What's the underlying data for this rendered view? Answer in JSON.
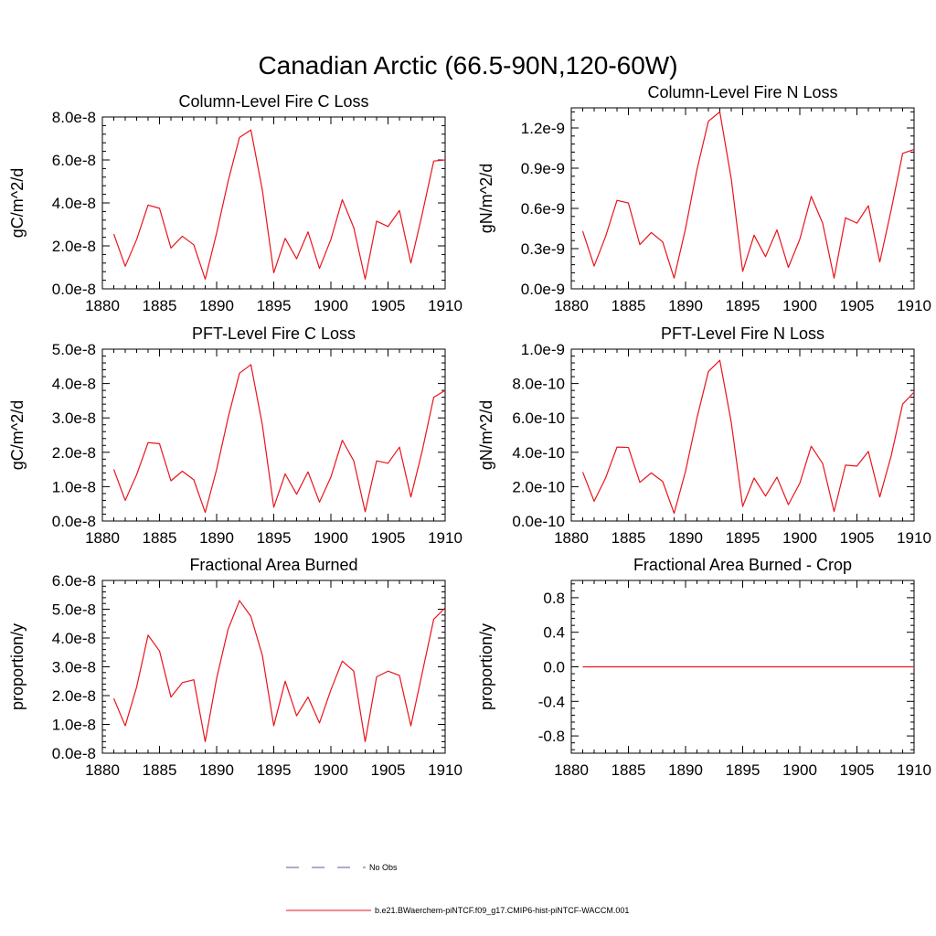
{
  "figure": {
    "title": "Canadian Arctic (66.5-90N,120-60W)",
    "line_color": "#e8141c",
    "obs_color": "#5a5aa0"
  },
  "legend": {
    "placement": "bottom-center",
    "entries": [
      {
        "label": "No Obs",
        "style": "dashed",
        "color": "#5a5aa0"
      },
      {
        "label": "b.e21.BWaerchem-piNTCF.f09_g17.CMIP6-hist-piNTCF-WACCM.001",
        "style": "solid",
        "color": "#e8141c"
      }
    ]
  },
  "chart_data": [
    {
      "type": "line",
      "title": "Column-Level Fire C Loss",
      "xlabel": "",
      "ylabel": "gC/m^2/d",
      "xlim": [
        1880,
        1910
      ],
      "ylim": [
        0,
        8e-08
      ],
      "xticks": [
        1880,
        1885,
        1890,
        1895,
        1900,
        1905,
        1910
      ],
      "xtick_labels": [
        "1880",
        "1885",
        "1890",
        "1895",
        "1900",
        "1905",
        "1910"
      ],
      "yticks": [
        0,
        2e-08,
        4e-08,
        6e-08,
        8e-08
      ],
      "ytick_labels": [
        "0.0e-8",
        "2.0e-8",
        "4.0e-8",
        "6.0e-8",
        "8.0e-8"
      ],
      "x": [
        1881,
        1882,
        1883,
        1884,
        1885,
        1886,
        1887,
        1888,
        1889,
        1890,
        1891,
        1892,
        1893,
        1894,
        1895,
        1896,
        1897,
        1898,
        1899,
        1900,
        1901,
        1902,
        1903,
        1904,
        1905,
        1906,
        1907,
        1908,
        1909,
        1910
      ],
      "values": [
        2.55e-08,
        1.05e-08,
        2.3e-08,
        3.9e-08,
        3.75e-08,
        1.9e-08,
        2.45e-08,
        2.05e-08,
        4.5e-09,
        2.6e-08,
        5e-08,
        7.05e-08,
        7.4e-08,
        4.6e-08,
        7.5e-09,
        2.35e-08,
        1.4e-08,
        2.65e-08,
        9.5e-09,
        2.3e-08,
        4.15e-08,
        2.85e-08,
        4.5e-09,
        3.15e-08,
        2.9e-08,
        3.65e-08,
        1.2e-08,
        3.5e-08,
        5.95e-08,
        6e-08
      ]
    },
    {
      "type": "line",
      "title": "Column-Level Fire N Loss",
      "xlabel": "",
      "ylabel": "gN/m^2/d",
      "xlim": [
        1880,
        1910
      ],
      "ylim": [
        0,
        1.35e-09
      ],
      "xticks": [
        1880,
        1885,
        1890,
        1895,
        1900,
        1905,
        1910
      ],
      "xtick_labels": [
        "1880",
        "1885",
        "1890",
        "1895",
        "1900",
        "1905",
        "1910"
      ],
      "yticks": [
        0,
        3e-10,
        6e-10,
        9e-10,
        1.2e-09
      ],
      "ytick_labels": [
        "0.0e-9",
        "0.3e-9",
        "0.6e-9",
        "0.9e-9",
        "1.2e-9"
      ],
      "x": [
        1881,
        1882,
        1883,
        1884,
        1885,
        1886,
        1887,
        1888,
        1889,
        1890,
        1891,
        1892,
        1893,
        1894,
        1895,
        1896,
        1897,
        1898,
        1899,
        1900,
        1901,
        1902,
        1903,
        1904,
        1905,
        1906,
        1907,
        1908,
        1909,
        1910
      ],
      "values": [
        4.3e-10,
        1.7e-10,
        3.9e-10,
        6.6e-10,
        6.4e-10,
        3.3e-10,
        4.2e-10,
        3.5e-10,
        8e-11,
        4.5e-10,
        8.9e-10,
        1.25e-09,
        1.32e-09,
        8.2e-10,
        1.3e-10,
        4e-10,
        2.4e-10,
        4.4e-10,
        1.6e-10,
        3.7e-10,
        6.9e-10,
        4.9e-10,
        8e-11,
        5.3e-10,
        4.9e-10,
        6.2e-10,
        2e-10,
        5.9e-10,
        1.01e-09,
        1.04e-09
      ]
    },
    {
      "type": "line",
      "title": "PFT-Level Fire C Loss",
      "xlabel": "",
      "ylabel": "gC/m^2/d",
      "xlim": [
        1880,
        1910
      ],
      "ylim": [
        0,
        5e-08
      ],
      "xticks": [
        1880,
        1885,
        1890,
        1895,
        1900,
        1905,
        1910
      ],
      "xtick_labels": [
        "1880",
        "1885",
        "1890",
        "1895",
        "1900",
        "1905",
        "1910"
      ],
      "yticks": [
        0,
        1e-08,
        2e-08,
        3e-08,
        4e-08,
        5e-08
      ],
      "ytick_labels": [
        "0.0e-8",
        "1.0e-8",
        "2.0e-8",
        "3.0e-8",
        "4.0e-8",
        "5.0e-8"
      ],
      "x": [
        1881,
        1882,
        1883,
        1884,
        1885,
        1886,
        1887,
        1888,
        1889,
        1890,
        1891,
        1892,
        1893,
        1894,
        1895,
        1896,
        1897,
        1898,
        1899,
        1900,
        1901,
        1902,
        1903,
        1904,
        1905,
        1906,
        1907,
        1908,
        1909,
        1910
      ],
      "values": [
        1.5e-08,
        6e-09,
        1.35e-08,
        2.28e-08,
        2.25e-08,
        1.17e-08,
        1.45e-08,
        1.2e-08,
        2.5e-09,
        1.5e-08,
        3e-08,
        4.3e-08,
        4.55e-08,
        2.8e-08,
        4e-09,
        1.37e-08,
        7.8e-09,
        1.43e-08,
        5.5e-09,
        1.28e-08,
        2.35e-08,
        1.75e-08,
        2.7e-09,
        1.75e-08,
        1.68e-08,
        2.15e-08,
        7e-09,
        2.05e-08,
        3.6e-08,
        3.8e-08
      ]
    },
    {
      "type": "line",
      "title": "PFT-Level Fire N Loss",
      "xlabel": "",
      "ylabel": "gN/m^2/d",
      "xlim": [
        1880,
        1910
      ],
      "ylim": [
        0,
        1e-09
      ],
      "xticks": [
        1880,
        1885,
        1890,
        1895,
        1900,
        1905,
        1910
      ],
      "xtick_labels": [
        "1880",
        "1885",
        "1890",
        "1895",
        "1900",
        "1905",
        "1910"
      ],
      "yticks": [
        0,
        2e-10,
        4e-10,
        6e-10,
        8e-10,
        1e-09
      ],
      "ytick_labels": [
        "0.0e-10",
        "2.0e-10",
        "4.0e-10",
        "6.0e-10",
        "8.0e-10",
        "1.0e-9"
      ],
      "x": [
        1881,
        1882,
        1883,
        1884,
        1885,
        1886,
        1887,
        1888,
        1889,
        1890,
        1891,
        1892,
        1893,
        1894,
        1895,
        1896,
        1897,
        1898,
        1899,
        1900,
        1901,
        1902,
        1903,
        1904,
        1905,
        1906,
        1907,
        1908,
        1909,
        1910
      ],
      "values": [
        2.85e-10,
        1.15e-10,
        2.5e-10,
        4.3e-10,
        4.28e-10,
        2.25e-10,
        2.8e-10,
        2.3e-10,
        4.5e-11,
        2.9e-10,
        6e-10,
        8.7e-10,
        9.35e-10,
        5.75e-10,
        8.5e-11,
        2.5e-10,
        1.45e-10,
        2.55e-10,
        9.5e-11,
        2.2e-10,
        4.35e-10,
        3.35e-10,
        5.5e-11,
        3.25e-10,
        3.2e-10,
        4.05e-10,
        1.4e-10,
        3.8e-10,
        6.8e-10,
        7.5e-10
      ]
    },
    {
      "type": "line",
      "title": "Fractional Area Burned",
      "xlabel": "",
      "ylabel": "proportion/y",
      "xlim": [
        1880,
        1910
      ],
      "ylim": [
        0,
        6e-08
      ],
      "xticks": [
        1880,
        1885,
        1890,
        1895,
        1900,
        1905,
        1910
      ],
      "xtick_labels": [
        "1880",
        "1885",
        "1890",
        "1895",
        "1900",
        "1905",
        "1910"
      ],
      "yticks": [
        0,
        1e-08,
        2e-08,
        3e-08,
        4e-08,
        5e-08,
        6e-08
      ],
      "ytick_labels": [
        "0.0e-8",
        "1.0e-8",
        "2.0e-8",
        "3.0e-8",
        "4.0e-8",
        "5.0e-8",
        "6.0e-8"
      ],
      "x": [
        1881,
        1882,
        1883,
        1884,
        1885,
        1886,
        1887,
        1888,
        1889,
        1890,
        1891,
        1892,
        1893,
        1894,
        1895,
        1896,
        1897,
        1898,
        1899,
        1900,
        1901,
        1902,
        1903,
        1904,
        1905,
        1906,
        1907,
        1908,
        1909,
        1910
      ],
      "values": [
        1.9e-08,
        9.5e-09,
        2.3e-08,
        4.1e-08,
        3.55e-08,
        1.95e-08,
        2.45e-08,
        2.55e-08,
        4e-09,
        2.6e-08,
        4.3e-08,
        5.3e-08,
        4.75e-08,
        3.4e-08,
        9.5e-09,
        2.5e-08,
        1.3e-08,
        1.95e-08,
        1.05e-08,
        2.2e-08,
        3.2e-08,
        2.85e-08,
        4e-09,
        2.65e-08,
        2.85e-08,
        2.7e-08,
        9.5e-09,
        2.8e-08,
        4.65e-08,
        5.05e-08
      ]
    },
    {
      "type": "line",
      "title": "Fractional Area Burned - Crop",
      "xlabel": "",
      "ylabel": "proportion/y",
      "xlim": [
        1880,
        1910
      ],
      "ylim": [
        -1.0,
        1.0
      ],
      "xticks": [
        1880,
        1885,
        1890,
        1895,
        1900,
        1905,
        1910
      ],
      "xtick_labels": [
        "1880",
        "1885",
        "1890",
        "1895",
        "1900",
        "1905",
        "1910"
      ],
      "yticks": [
        -0.8,
        -0.4,
        0.0,
        0.4,
        0.8
      ],
      "ytick_labels": [
        "-0.8",
        "-0.4",
        "0.0",
        "0.4",
        "0.8"
      ],
      "x": [
        1881,
        1882,
        1883,
        1884,
        1885,
        1886,
        1887,
        1888,
        1889,
        1890,
        1891,
        1892,
        1893,
        1894,
        1895,
        1896,
        1897,
        1898,
        1899,
        1900,
        1901,
        1902,
        1903,
        1904,
        1905,
        1906,
        1907,
        1908,
        1909,
        1910
      ],
      "values": [
        0,
        0,
        0,
        0,
        0,
        0,
        0,
        0,
        0,
        0,
        0,
        0,
        0,
        0,
        0,
        0,
        0,
        0,
        0,
        0,
        0,
        0,
        0,
        0,
        0,
        0,
        0,
        0,
        0,
        0
      ]
    }
  ]
}
